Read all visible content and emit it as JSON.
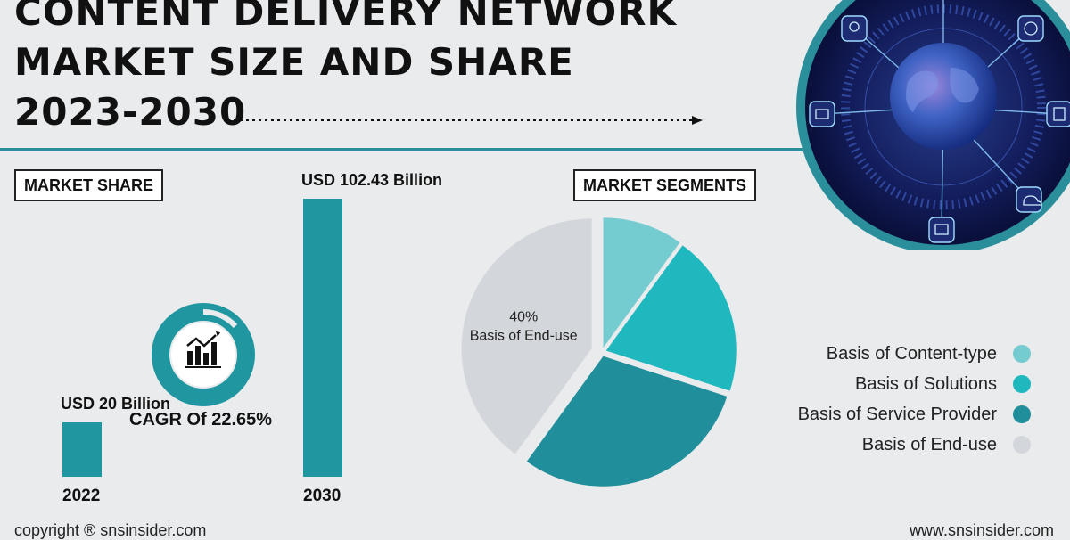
{
  "header": {
    "title_lines": [
      "CONTENT DELIVERY NETWORK",
      "MARKET SIZE AND SHARE",
      "2023-2030"
    ]
  },
  "market_share": {
    "label": "MARKET SHARE",
    "cagr_text": "CAGR Of 22.65%",
    "icon": "bar-chart-icon"
  },
  "segments": {
    "label": "MARKET SEGMENTS"
  },
  "footer": {
    "copyright": "copyright ® snsinsider.com",
    "website": "www.snsinsider.com"
  },
  "colors": {
    "accent": "#2096a0",
    "content_type": "#74ccd0",
    "solutions": "#1fb8bf",
    "service_provider": "#208f9b",
    "end_use": "#d3d7db"
  },
  "chart_data": [
    {
      "type": "bar",
      "categories": [
        "2022",
        "2030"
      ],
      "values": [
        20,
        102.43
      ],
      "value_labels": [
        "USD 20 Billion",
        "USD 102.43 Billion"
      ],
      "unit": "USD Billion"
    },
    {
      "type": "pie",
      "slices": [
        {
          "name": "Basis of Content-type",
          "value": 10,
          "color": "#74ccd0"
        },
        {
          "name": "Basis of Solutions",
          "value": 20,
          "color": "#1fb8bf"
        },
        {
          "name": "Basis of Service Provider",
          "value": 30,
          "color": "#208f9b"
        },
        {
          "name": "Basis of End-use",
          "value": 40,
          "color": "#d3d7db"
        }
      ],
      "slice_label": {
        "percent": "40%",
        "name": "Basis of End-use"
      },
      "legend_position": "right"
    }
  ]
}
